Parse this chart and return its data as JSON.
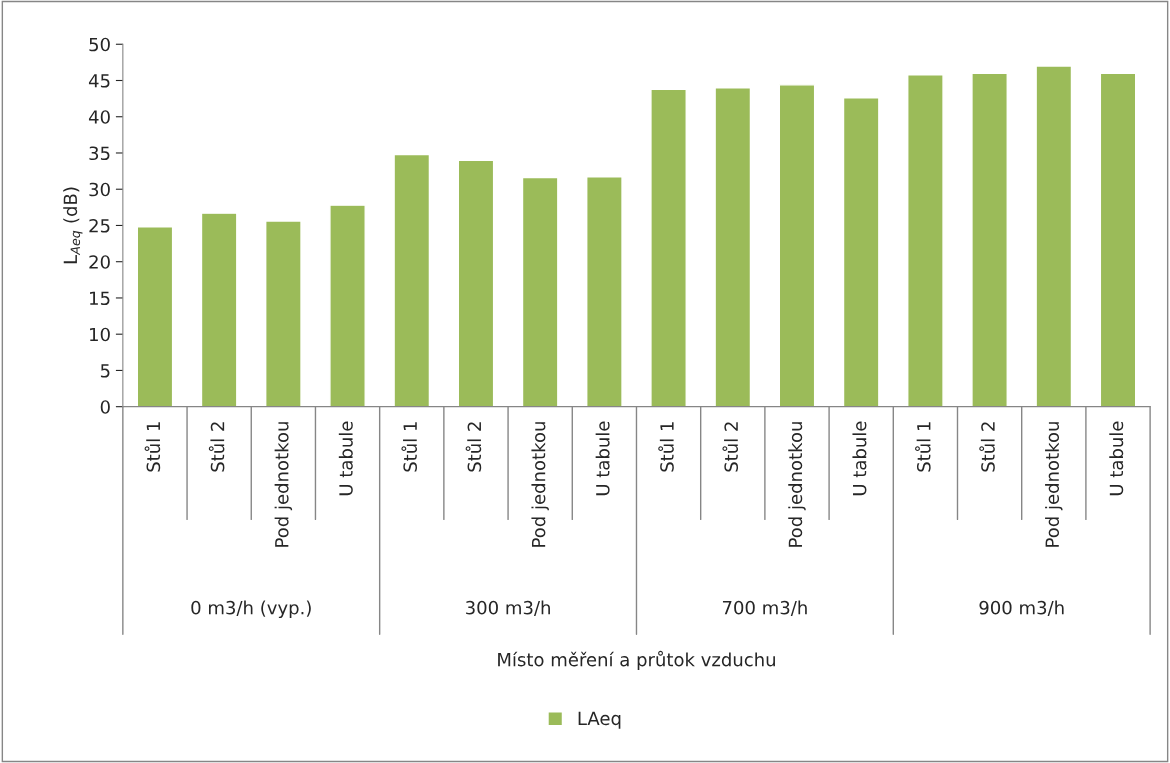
{
  "chart_data": {
    "type": "bar",
    "categories": [
      "Stůl 1",
      "Stůl 2",
      "Pod jednotkou",
      "U tabule",
      "Stůl 1",
      "Stůl 2",
      "Pod jednotkou",
      "U tabule",
      "Stůl 1",
      "Stůl 2",
      "Pod jednotkou",
      "U tabule",
      "Stůl 1",
      "Stůl 2",
      "Pod jednotkou",
      "U tabule"
    ],
    "series": [
      {
        "name": "LAeq",
        "color": "#9bbb59",
        "values": [
          24.8,
          26.7,
          25.6,
          27.8,
          34.8,
          34.0,
          31.6,
          31.7,
          43.8,
          44.0,
          44.4,
          42.6,
          45.8,
          46.0,
          47.0,
          46.0
        ]
      }
    ],
    "annotations": [
      "0 m3/h (vyp.)",
      "300 m3/h",
      "700 m3/h",
      "900 m3/h",
      "Místo měření a průtok vzduchu"
    ],
    "ylabel": "L$_{Aeq}$ (dB)",
    "ylim": [
      0,
      50
    ],
    "yticks": [
      0,
      5,
      10,
      15,
      20,
      25,
      30,
      35,
      40,
      45,
      50
    ],
    "grid": false,
    "legend": "bottom"
  }
}
